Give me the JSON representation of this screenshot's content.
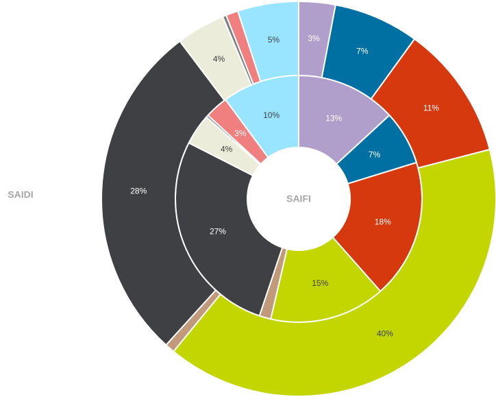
{
  "chart_data": {
    "type": "donut",
    "colors": [
      "#b09fca",
      "#0070a3",
      "#d6390e",
      "#c4d600",
      "#c09a7a",
      "#3f4043",
      "#ebecd9",
      "#7f7f7f",
      "#f07f7f",
      "#99e5ff"
    ],
    "label_colors": [
      "#ffffff",
      "#ffffff",
      "#ffffff",
      "#404040",
      "#404040",
      "#ffffff",
      "#404040",
      "#ffffff",
      "#ffffff",
      "#404040"
    ],
    "series": [
      {
        "name": "SAIFI",
        "values": [
          13,
          7,
          18,
          15,
          1.5,
          27,
          4,
          0.3,
          3,
          10
        ],
        "value_labels": [
          "13%",
          "7%",
          "18%",
          "15%",
          null,
          "27%",
          "4%",
          null,
          "3%",
          "10%"
        ]
      },
      {
        "name": "SAIDI",
        "values": [
          3,
          7,
          11,
          40,
          0.8,
          28,
          4,
          0.3,
          1,
          5
        ],
        "value_labels": [
          "3%",
          "7%",
          "11%",
          "40%",
          null,
          "28%",
          "4%",
          null,
          null,
          "5%"
        ]
      }
    ]
  }
}
